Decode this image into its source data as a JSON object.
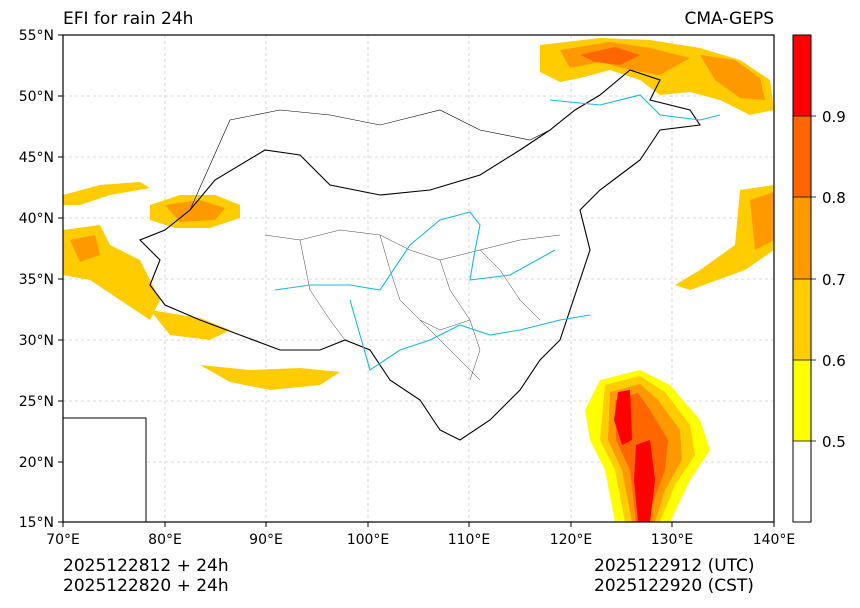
{
  "title_left": "EFI for rain 24h",
  "title_right": "CMA-GEPS",
  "map": {
    "lon_range": [
      70,
      140
    ],
    "lat_range": [
      15,
      55
    ],
    "lon_ticks": [
      "70°E",
      "80°E",
      "90°E",
      "100°E",
      "110°E",
      "120°E",
      "130°E",
      "140°E"
    ],
    "lat_ticks": [
      "15°N",
      "20°N",
      "25°N",
      "30°N",
      "35°N",
      "40°N",
      "45°N",
      "50°N",
      "55°N"
    ],
    "grid": true,
    "inset": "South China Sea inset, bottom-left"
  },
  "colorbar": {
    "levels": [
      "0.5",
      "0.6",
      "0.7",
      "0.8",
      "0.9"
    ],
    "colors": [
      "#ffffff",
      "#ffff00",
      "#ffcc00",
      "#ff9900",
      "#ff6600",
      "#ff0000"
    ]
  },
  "colors": {
    "rivers": "#1ab8e0",
    "borders": "#000000",
    "grid": "#cccccc"
  },
  "footer": {
    "init_utc": "2025122812 + 24h",
    "init_cst": "2025122820 + 24h",
    "valid_utc": "2025122912 (UTC)",
    "valid_cst": "2025122920 (CST)"
  }
}
